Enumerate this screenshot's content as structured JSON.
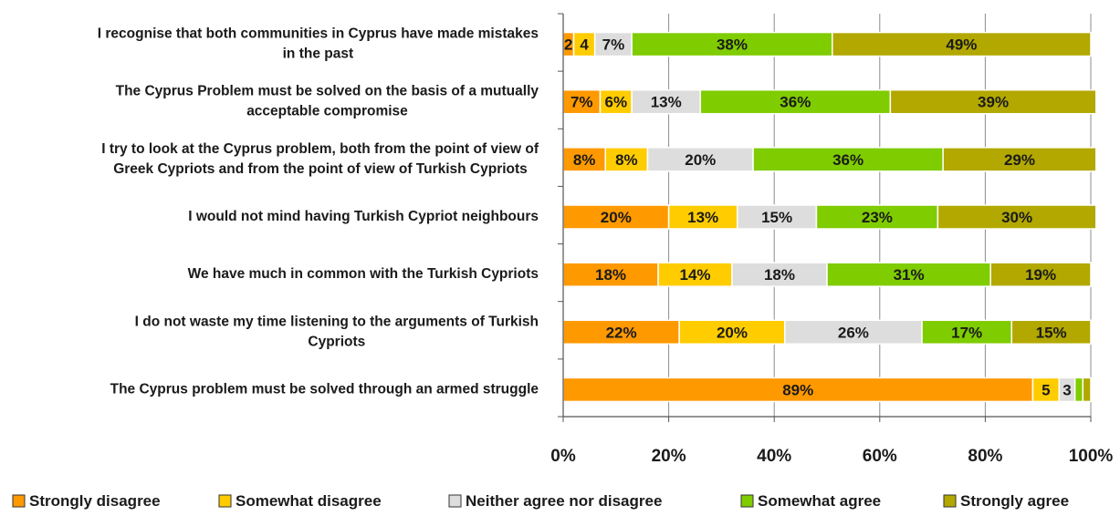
{
  "chart_data": {
    "type": "bar",
    "orientation": "horizontal",
    "stacked": true,
    "percent_stacked": true,
    "title": "",
    "xlabel": "",
    "ylabel": "",
    "xlim": [
      0,
      100
    ],
    "x_ticks": [
      "0%",
      "20%",
      "40%",
      "60%",
      "80%",
      "100%"
    ],
    "grid": true,
    "legend_position": "bottom",
    "categories": [
      [
        "I recognise that both communities in Cyprus have made mistakes",
        "in the past"
      ],
      [
        "The Cyprus Problem must be solved on the basis of a mutually",
        "acceptable compromise"
      ],
      [
        "I try to look at the Cyprus problem, both from the point of view of",
        "Greek Cypriots and from the point of view of Turkish Cypriots"
      ],
      [
        "I would not mind having Turkish Cypriot neighbours"
      ],
      [
        "We have much in common with the Turkish Cypriots"
      ],
      [
        "I do not waste my time listening to the arguments of Turkish",
        "Cypriots"
      ],
      [
        "The Cyprus problem must be solved through an armed struggle"
      ]
    ],
    "series": [
      {
        "name": "Strongly disagree",
        "color": "#ff9900",
        "values": [
          2,
          7,
          8,
          20,
          18,
          22,
          89
        ],
        "labels": [
          "2",
          "7%",
          "8%",
          "20%",
          "18%",
          "22%",
          "89%"
        ]
      },
      {
        "name": "Somewhat disagree",
        "color": "#ffcc00",
        "values": [
          4,
          6,
          8,
          13,
          14,
          20,
          5
        ],
        "labels": [
          "4",
          "6%",
          "8%",
          "13%",
          "14%",
          "20%",
          "5"
        ]
      },
      {
        "name": "Neither agree nor disagree",
        "color": "#dddddd",
        "values": [
          7,
          13,
          20,
          15,
          18,
          26,
          3
        ],
        "labels": [
          "7%",
          "13%",
          "20%",
          "15%",
          "18%",
          "26%",
          "3"
        ]
      },
      {
        "name": "Somewhat agree",
        "color": "#7fcc00",
        "values": [
          38,
          36,
          36,
          23,
          31,
          17,
          1.5
        ],
        "labels": [
          "38%",
          "36%",
          "36%",
          "23%",
          "31%",
          "17%",
          ""
        ]
      },
      {
        "name": "Strongly agree",
        "color": "#b2a800",
        "values": [
          49,
          39,
          29,
          30,
          19,
          15,
          1.5
        ],
        "labels": [
          "49%",
          "39%",
          "29%",
          "30%",
          "19%",
          "15%",
          ""
        ]
      }
    ]
  }
}
